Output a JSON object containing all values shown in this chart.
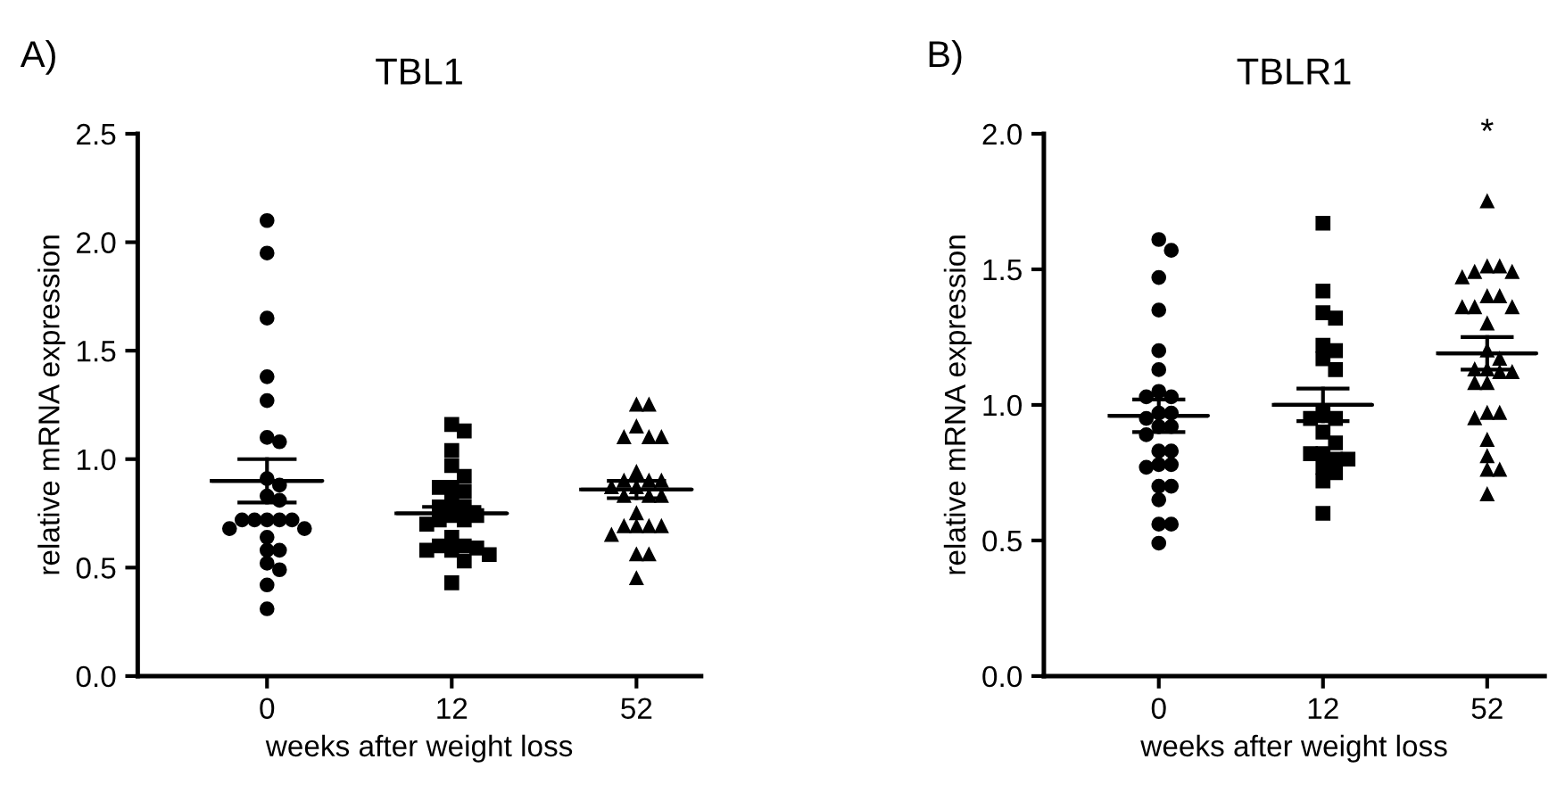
{
  "chart_data": [
    {
      "type": "scatter",
      "title": "TBL1",
      "xlabel": "weeks after weight loss",
      "ylabel": "relative mRNA expression",
      "annotations": [
        "A)"
      ],
      "categories": [
        "0",
        "12",
        "52"
      ],
      "ylim": [
        0,
        2.5
      ],
      "yticks": [
        {
          "value": 0,
          "label": "0.0"
        },
        0.5,
        {
          "value": 1,
          "label": "1.0"
        },
        1.5,
        {
          "value": 2,
          "label": "2.0"
        },
        2.5
      ],
      "grid": false,
      "legend": false,
      "series": [
        {
          "marker": "circle",
          "color": "#000000",
          "x": [
            "0",
            "0",
            "0",
            "0",
            "0",
            "0",
            "0",
            "0",
            "0",
            "0",
            "0",
            "0",
            "0",
            "0",
            "0",
            "0",
            "0",
            "0",
            "0",
            "0",
            "0",
            "0",
            "0",
            "0",
            "0"
          ],
          "values": [
            2.1,
            1.95,
            1.65,
            1.38,
            1.27,
            1.1,
            1.08,
            0.91,
            0.88,
            0.83,
            0.81,
            0.72,
            0.72,
            0.72,
            0.72,
            0.72,
            0.68,
            0.68,
            0.64,
            0.58,
            0.58,
            0.52,
            0.49,
            0.42,
            0.31
          ]
        },
        {
          "marker": "square",
          "color": "#000000",
          "x": [
            "12",
            "12",
            "12",
            "12",
            "12",
            "12",
            "12",
            "12",
            "12",
            "12",
            "12",
            "12",
            "12",
            "12",
            "12",
            "12",
            "12",
            "12",
            "12",
            "12",
            "12",
            "12",
            "12",
            "12",
            "12"
          ],
          "values": [
            1.16,
            1.13,
            1.04,
            0.97,
            0.92,
            0.87,
            0.87,
            0.85,
            0.81,
            0.78,
            0.78,
            0.74,
            0.74,
            0.72,
            0.72,
            0.7,
            0.64,
            0.6,
            0.6,
            0.58,
            0.59,
            0.58,
            0.56,
            0.53,
            0.43
          ]
        },
        {
          "marker": "triangle",
          "color": "#000000",
          "x": [
            "52",
            "52",
            "52",
            "52",
            "52",
            "52",
            "52",
            "52",
            "52",
            "52",
            "52",
            "52",
            "52",
            "52",
            "52",
            "52",
            "52",
            "52",
            "52",
            "52",
            "52",
            "52",
            "52",
            "52"
          ],
          "values": [
            1.25,
            1.25,
            1.15,
            1.1,
            1.1,
            1.1,
            0.94,
            0.9,
            0.9,
            0.9,
            0.87,
            0.87,
            0.83,
            0.83,
            0.83,
            0.75,
            0.69,
            0.69,
            0.69,
            0.69,
            0.65,
            0.56,
            0.56,
            0.45
          ]
        },
        {
          "type": "box",
          "color": "#000000",
          "x": [
            "0",
            "12",
            "52"
          ],
          "boxes": [
            {
              "low": 0.8,
              "q1": 0.9,
              "median": 0.9,
              "q3": 0.9,
              "high": 1.0
            },
            {
              "low": 0.72,
              "q1": 0.75,
              "median": 0.75,
              "q3": 0.75,
              "high": 0.78
            },
            {
              "low": 0.82,
              "q1": 0.86,
              "median": 0.86,
              "q3": 0.86,
              "high": 0.9
            }
          ]
        }
      ]
    },
    {
      "type": "scatter",
      "title": "TBLR1",
      "xlabel": "weeks after weight loss",
      "ylabel": "relative mRNA expression",
      "annotations": [
        "B)",
        "*"
      ],
      "categories": [
        "0",
        "12",
        "52"
      ],
      "ylim": [
        0,
        2.0
      ],
      "yticks": [
        {
          "value": 0,
          "label": "0.0"
        },
        0.5,
        {
          "value": 1,
          "label": "1.0"
        },
        1.5,
        {
          "value": 2,
          "label": "2.0"
        }
      ],
      "grid": false,
      "legend": false,
      "series": [
        {
          "marker": "circle",
          "color": "#000000",
          "x": [
            "0",
            "0",
            "0",
            "0",
            "0",
            "0",
            "0",
            "0",
            "0",
            "0",
            "0",
            "0",
            "0",
            "0",
            "0",
            "0",
            "0",
            "0",
            "0",
            "0",
            "0",
            "0",
            "0",
            "0",
            "0",
            "0"
          ],
          "values": [
            1.61,
            1.57,
            1.47,
            1.35,
            1.2,
            1.13,
            1.05,
            1.03,
            1.03,
            0.97,
            0.97,
            0.95,
            0.92,
            0.92,
            0.89,
            0.83,
            0.83,
            0.78,
            0.78,
            0.77,
            0.7,
            0.7,
            0.65,
            0.56,
            0.56,
            0.49
          ]
        },
        {
          "marker": "square",
          "color": "#000000",
          "x": [
            "12",
            "12",
            "12",
            "12",
            "12",
            "12",
            "12",
            "12",
            "12",
            "12",
            "12",
            "12",
            "12",
            "12",
            "12",
            "12",
            "12",
            "12",
            "12",
            "12",
            "12"
          ],
          "values": [
            1.67,
            1.42,
            1.34,
            1.32,
            1.22,
            1.2,
            1.17,
            1.13,
            0.97,
            0.95,
            0.95,
            0.9,
            0.86,
            0.82,
            0.82,
            0.8,
            0.8,
            0.77,
            0.75,
            0.72,
            0.6
          ]
        },
        {
          "marker": "triangle",
          "color": "#000000",
          "x": [
            "52",
            "52",
            "52",
            "52",
            "52",
            "52",
            "52",
            "52",
            "52",
            "52",
            "52",
            "52",
            "52",
            "52",
            "52",
            "52",
            "52",
            "52",
            "52",
            "52",
            "52",
            "52",
            "52",
            "52",
            "52",
            "52",
            "52",
            "52"
          ],
          "values": [
            1.75,
            1.51,
            1.51,
            1.49,
            1.49,
            1.47,
            1.4,
            1.4,
            1.36,
            1.36,
            1.36,
            1.3,
            1.2,
            1.17,
            1.13,
            1.13,
            1.12,
            1.12,
            1.08,
            1.08,
            0.97,
            0.97,
            0.95,
            0.87,
            0.81,
            0.76,
            0.76,
            0.67
          ]
        },
        {
          "type": "box",
          "color": "#000000",
          "x": [
            "0",
            "12",
            "52"
          ],
          "boxes": [
            {
              "low": 0.9,
              "q1": 0.96,
              "median": 0.96,
              "q3": 0.96,
              "high": 1.02
            },
            {
              "low": 0.94,
              "q1": 1.0,
              "median": 1.0,
              "q3": 1.0,
              "high": 1.06
            },
            {
              "low": 1.13,
              "q1": 1.19,
              "median": 1.19,
              "q3": 1.19,
              "high": 1.25
            }
          ]
        }
      ]
    }
  ]
}
